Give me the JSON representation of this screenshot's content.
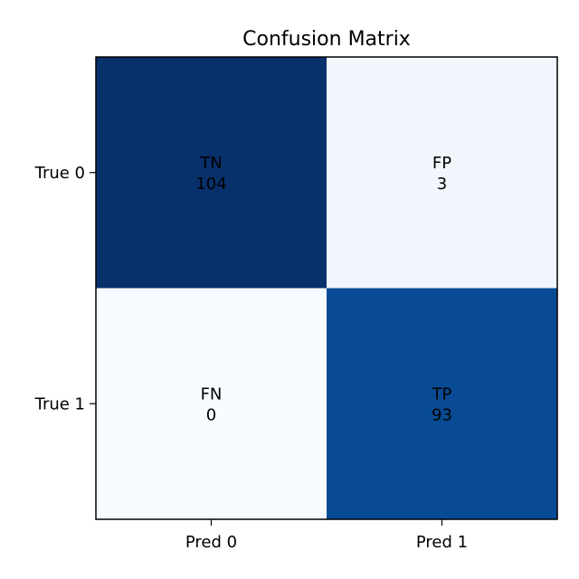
{
  "chart_data": {
    "type": "heatmap",
    "title": "Confusion Matrix",
    "x_categories": [
      "Pred 0",
      "Pred 1"
    ],
    "y_categories": [
      "True 0",
      "True 1"
    ],
    "cells": [
      [
        {
          "label": "TN",
          "value": 104,
          "color": "#08306b"
        },
        {
          "label": "FP",
          "value": 3,
          "color": "#f1f6fd"
        }
      ],
      [
        {
          "label": "FN",
          "value": 0,
          "color": "#f7fbff"
        },
        {
          "label": "TP",
          "value": 93,
          "color": "#084b94"
        }
      ]
    ],
    "colormap": "Blues",
    "grid": false,
    "legend": "none"
  }
}
